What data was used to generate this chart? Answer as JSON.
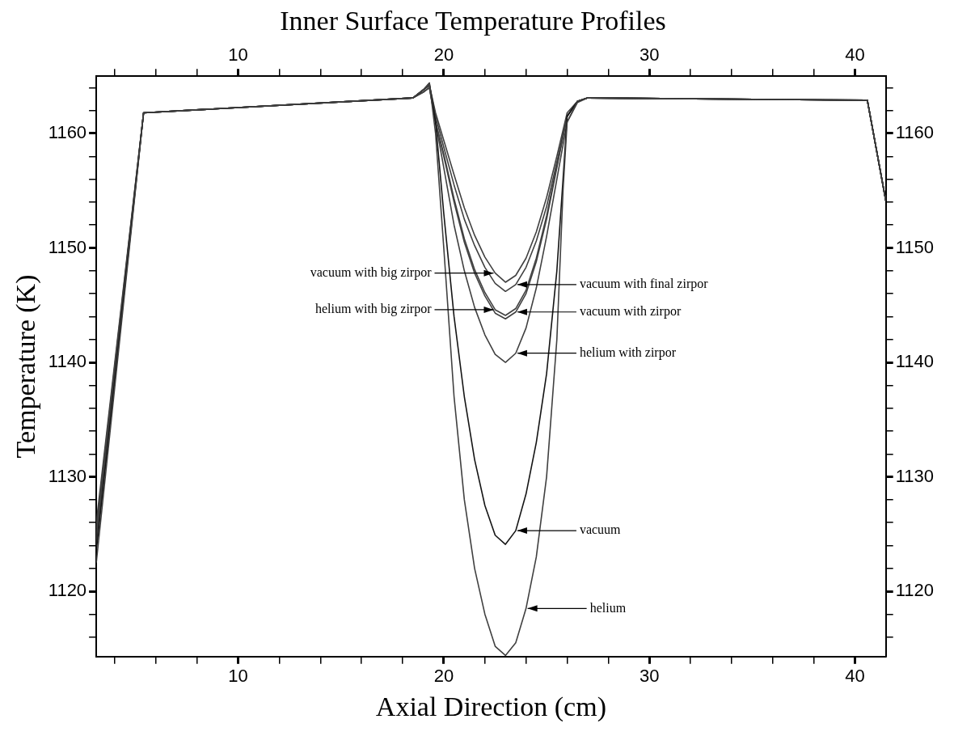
{
  "chart_data": {
    "type": "line",
    "title": "Inner Surface Temperature Profiles",
    "xlabel": "Axial Direction (cm)",
    "ylabel": "Temperature (K)",
    "marker": "none",
    "line_style": "solid",
    "xlim": [
      3.1,
      41.5
    ],
    "xticks": [
      {
        "value": 4,
        "label": null
      },
      {
        "value": 6,
        "label": null
      },
      {
        "value": 8,
        "label": null
      },
      10,
      {
        "value": 12,
        "label": null
      },
      {
        "value": 14,
        "label": null
      },
      {
        "value": 16,
        "label": null
      },
      {
        "value": 18,
        "label": null
      },
      20,
      {
        "value": 22,
        "label": null
      },
      {
        "value": 24,
        "label": null
      },
      {
        "value": 26,
        "label": null
      },
      {
        "value": 28,
        "label": null
      },
      30,
      {
        "value": 32,
        "label": null
      },
      {
        "value": 34,
        "label": null
      },
      {
        "value": 36,
        "label": null
      },
      {
        "value": 38,
        "label": null
      },
      40
    ],
    "x2lim": [
      3.1,
      41.5
    ],
    "x2ticks": [
      {
        "value": 4,
        "label": null
      },
      {
        "value": 6,
        "label": null
      },
      {
        "value": 8,
        "label": null
      },
      10,
      {
        "value": 12,
        "label": null
      },
      {
        "value": 14,
        "label": null
      },
      {
        "value": 16,
        "label": null
      },
      {
        "value": 18,
        "label": null
      },
      20,
      {
        "value": 22,
        "label": null
      },
      {
        "value": 24,
        "label": null
      },
      {
        "value": 26,
        "label": null
      },
      {
        "value": 28,
        "label": null
      },
      30,
      {
        "value": 32,
        "label": null
      },
      {
        "value": 34,
        "label": null
      },
      {
        "value": 36,
        "label": null
      },
      {
        "value": 38,
        "label": null
      },
      40
    ],
    "ylim": [
      1114.3,
      1165
    ],
    "yticks": [
      {
        "value": 1116,
        "label": null
      },
      {
        "value": 1118,
        "label": null
      },
      1120,
      {
        "value": 1122,
        "label": null
      },
      {
        "value": 1124,
        "label": null
      },
      {
        "value": 1126,
        "label": null
      },
      {
        "value": 1128,
        "label": null
      },
      1130,
      {
        "value": 1132,
        "label": null
      },
      {
        "value": 1134,
        "label": null
      },
      {
        "value": 1136,
        "label": null
      },
      {
        "value": 1138,
        "label": null
      },
      1140,
      {
        "value": 1142,
        "label": null
      },
      {
        "value": 1144,
        "label": null
      },
      {
        "value": 1146,
        "label": null
      },
      {
        "value": 1148,
        "label": null
      },
      1150,
      {
        "value": 1152,
        "label": null
      },
      {
        "value": 1154,
        "label": null
      },
      {
        "value": 1156,
        "label": null
      },
      {
        "value": 1158,
        "label": null
      },
      1160,
      {
        "value": 1162,
        "label": null
      },
      {
        "value": 1164,
        "label": null
      }
    ],
    "y2lim": [
      1114.3,
      1165
    ],
    "y2ticks": [
      {
        "value": 1116,
        "label": null
      },
      {
        "value": 1118,
        "label": null
      },
      1120,
      {
        "value": 1122,
        "label": null
      },
      {
        "value": 1124,
        "label": null
      },
      {
        "value": 1126,
        "label": null
      },
      {
        "value": 1128,
        "label": null
      },
      1130,
      {
        "value": 1132,
        "label": null
      },
      {
        "value": 1134,
        "label": null
      },
      {
        "value": 1136,
        "label": null
      },
      {
        "value": 1138,
        "label": null
      },
      1140,
      {
        "value": 1142,
        "label": null
      },
      {
        "value": 1144,
        "label": null
      },
      {
        "value": 1146,
        "label": null
      },
      {
        "value": 1148,
        "label": null
      },
      1150,
      {
        "value": 1152,
        "label": null
      },
      {
        "value": 1154,
        "label": null
      },
      {
        "value": 1156,
        "label": null
      },
      {
        "value": 1158,
        "label": null
      },
      1160,
      {
        "value": 1162,
        "label": null
      },
      {
        "value": 1164,
        "label": null
      }
    ],
    "series": [
      {
        "color": "#404040",
        "x": [
          3.1,
          5.4,
          18.5,
          19.0,
          19.3,
          19.6,
          20.0,
          20.5,
          21.0,
          21.5,
          22.0,
          22.5,
          23.0,
          23.5,
          24.0,
          24.5,
          25.0,
          25.5,
          25.8,
          26.0,
          26.5,
          27.0,
          40.6,
          41.5
        ],
        "values": [
          1122.5,
          1161.8,
          1163.1,
          1163.8,
          1164.4,
          1160,
          1150,
          1137,
          1128,
          1122,
          1118,
          1115.2,
          1114.4,
          1115.5,
          1118.5,
          1123,
          1130,
          1142,
          1155,
          1161,
          1162.8,
          1163.1,
          1162.9,
          1154.1
        ]
      },
      {
        "color": "#141414",
        "x": [
          3.1,
          5.4,
          18.5,
          19.0,
          19.3,
          19.6,
          20.0,
          20.5,
          21.0,
          21.5,
          22.0,
          22.5,
          23.0,
          23.5,
          24.0,
          24.5,
          25.0,
          25.5,
          25.8,
          26.0,
          26.5,
          27.0,
          40.6,
          41.5
        ],
        "values": [
          1123.5,
          1161.8,
          1163.1,
          1163.8,
          1164.4,
          1161,
          1153,
          1144,
          1137,
          1131.5,
          1127.5,
          1124.9,
          1124.1,
          1125.3,
          1128.5,
          1133,
          1139,
          1148,
          1156,
          1161.5,
          1162.8,
          1163.1,
          1162.9,
          1154.1
        ]
      },
      {
        "color": "#404040",
        "x": [
          3.1,
          5.4,
          18.5,
          19.0,
          19.3,
          19.6,
          20.0,
          20.5,
          21.0,
          21.5,
          22.0,
          22.5,
          23.0,
          23.5,
          24.0,
          24.5,
          25.0,
          25.5,
          26.0,
          26.5,
          27.0,
          40.6,
          41.5
        ],
        "values": [
          1124,
          1161.8,
          1163.1,
          1163.6,
          1164,
          1161,
          1157,
          1152,
          1148,
          1144.8,
          1142.4,
          1140.7,
          1140.0,
          1140.8,
          1143,
          1146.5,
          1151,
          1156,
          1161,
          1162.7,
          1163.1,
          1162.9,
          1154.1
        ]
      },
      {
        "color": "#404040",
        "x": [
          3.1,
          5.4,
          18.5,
          19.0,
          19.3,
          19.6,
          20.0,
          20.5,
          21.0,
          21.5,
          22.0,
          22.5,
          23.0,
          23.5,
          24.0,
          24.5,
          25.0,
          25.5,
          26.0,
          26.5,
          27.0,
          40.6,
          41.5
        ],
        "values": [
          1124.5,
          1161.8,
          1163.1,
          1163.8,
          1164.2,
          1161,
          1158,
          1154,
          1150.5,
          1147.8,
          1145.8,
          1144.3,
          1143.8,
          1144.4,
          1146,
          1148.8,
          1152.5,
          1157,
          1161.5,
          1162.8,
          1163.1,
          1162.9,
          1154.1
        ]
      },
      {
        "color": "#404040",
        "x": [
          3.1,
          5.4,
          18.5,
          19.0,
          19.3,
          19.6,
          20.0,
          20.5,
          21.0,
          21.5,
          22.0,
          22.5,
          23.0,
          23.5,
          24.0,
          24.5,
          25.0,
          25.5,
          26.0,
          26.5,
          27.0,
          40.6,
          41.5
        ],
        "values": [
          1125,
          1161.8,
          1163.1,
          1163.6,
          1164,
          1161,
          1158.2,
          1154.3,
          1150.8,
          1148.1,
          1146.1,
          1144.6,
          1144.1,
          1144.7,
          1146.3,
          1149.1,
          1152.8,
          1157.2,
          1161.5,
          1162.8,
          1163.1,
          1162.9,
          1154.1
        ]
      },
      {
        "color": "#404040",
        "x": [
          3.1,
          5.4,
          18.5,
          19.0,
          19.3,
          19.6,
          20.0,
          20.5,
          21.0,
          21.5,
          22.0,
          22.5,
          23.0,
          23.5,
          24.0,
          24.5,
          25.0,
          25.5,
          26.0,
          26.5,
          27.0,
          40.6,
          41.5
        ],
        "values": [
          1125.5,
          1161.8,
          1163.1,
          1163.8,
          1164.2,
          1161.5,
          1158.8,
          1155.5,
          1152.5,
          1150.2,
          1148.3,
          1146.9,
          1146.2,
          1146.8,
          1148.3,
          1150.6,
          1153.6,
          1157.5,
          1161.5,
          1162.8,
          1163.1,
          1162.9,
          1154.1
        ]
      },
      {
        "color": "#404040",
        "x": [
          3.1,
          5.4,
          18.5,
          19.0,
          19.3,
          19.6,
          20.0,
          20.5,
          21.0,
          21.5,
          22.0,
          22.5,
          23.0,
          23.5,
          24.0,
          24.5,
          25.0,
          25.5,
          26.0,
          26.5,
          27.0,
          40.6,
          41.5
        ],
        "values": [
          1126,
          1161.8,
          1163.1,
          1163.8,
          1164.2,
          1161.8,
          1159.4,
          1156.4,
          1153.5,
          1151.1,
          1149.2,
          1147.8,
          1147.0,
          1147.6,
          1149.1,
          1151.4,
          1154.4,
          1158,
          1161.8,
          1162.8,
          1163.1,
          1162.9,
          1154.1
        ]
      }
    ],
    "annotations": [
      {
        "text": "vacuum with big zirpor",
        "x": 22.5,
        "y": 1147.8
      },
      {
        "text": "vacuum with final zirpor",
        "x": 23.5,
        "y": 1146.8
      },
      {
        "text": "helium with big zirpor",
        "x": 22.5,
        "y": 1144.6
      },
      {
        "text": "vacuum with zirpor",
        "x": 23.5,
        "y": 1144.4
      },
      {
        "text": "helium with zirpor",
        "x": 23.5,
        "y": 1140.8
      },
      {
        "text": "vacuum",
        "x": 23.5,
        "y": 1125.3
      },
      {
        "text": "helium",
        "x": 24.0,
        "y": 1118.5
      }
    ]
  }
}
